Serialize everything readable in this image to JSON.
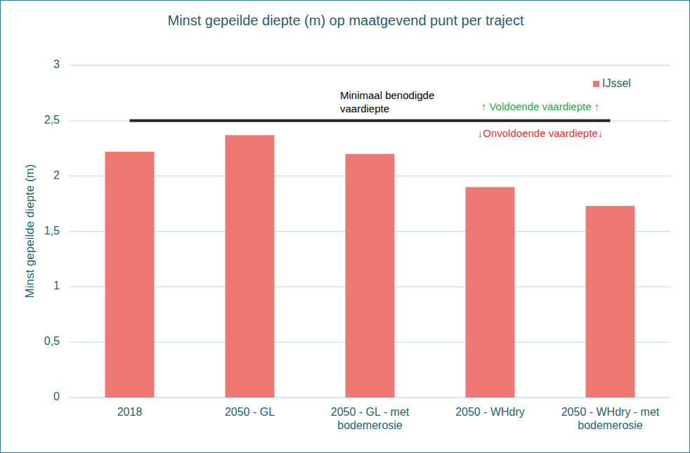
{
  "chart_data": {
    "type": "bar",
    "title": "Minst gepeilde diepte (m) op maatgevend punt per traject",
    "y_label": "Minst gepeilde diepte (m)",
    "categories": [
      "2018",
      "2050 - GL",
      "2050 - GL - met bodemerosie",
      "2050 - WHdry",
      "2050 - WHdry - met bodemerosie"
    ],
    "series": [
      {
        "name": "IJssel",
        "color": "#f07874",
        "values": [
          2.22,
          2.37,
          2.2,
          1.9,
          1.73
        ]
      }
    ],
    "ylim": [
      0,
      3
    ],
    "yticks": [
      0,
      {
        "value": 0.5,
        "label": "0,5"
      },
      1,
      {
        "value": 1.5,
        "label": "1,5"
      },
      2,
      {
        "value": 2.5,
        "label": "2,5"
      },
      3
    ],
    "grid": true,
    "legend": "top-right",
    "reference_line": {
      "value": 2.5,
      "label": "Minimaal benodigde vaardiepte",
      "above": "↑ Voldoende vaardiepte ↑",
      "below": "↓Onvoldoende vaardiepte↓"
    }
  }
}
